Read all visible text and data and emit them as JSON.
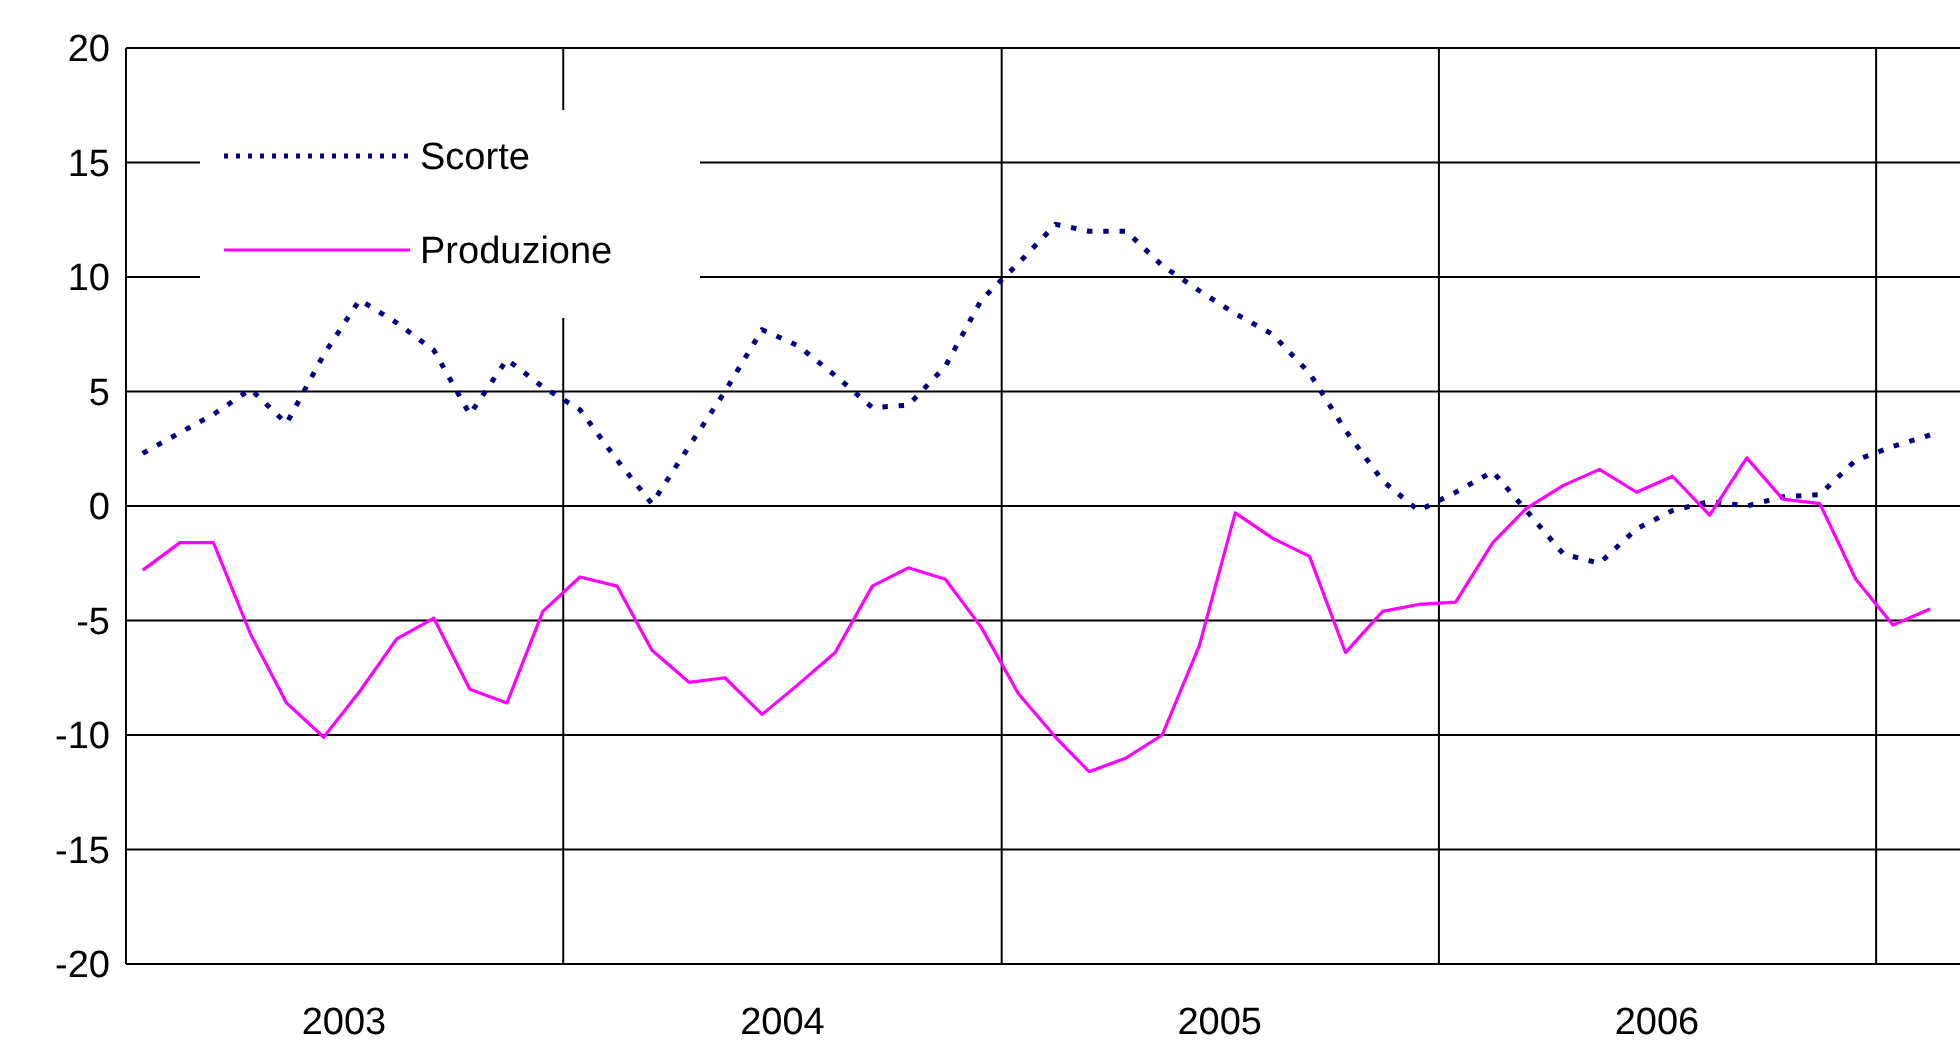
{
  "chart_data": {
    "type": "line",
    "x": [
      "2003-01-15",
      "2003-02-15",
      "2003-03-15",
      "2003-04-15",
      "2003-05-15",
      "2003-06-15",
      "2003-07-15",
      "2003-08-15",
      "2003-09-15",
      "2003-10-15",
      "2003-11-15",
      "2003-12-15",
      "2004-01-15",
      "2004-02-15",
      "2004-03-15",
      "2004-04-15",
      "2004-05-15",
      "2004-06-15",
      "2004-07-15",
      "2004-08-15",
      "2004-09-15",
      "2004-10-15",
      "2004-11-15",
      "2004-12-15",
      "2005-01-15",
      "2005-02-15",
      "2005-03-15",
      "2005-04-15",
      "2005-05-15",
      "2005-06-15",
      "2005-07-15",
      "2005-08-15",
      "2005-09-15",
      "2005-10-15",
      "2005-11-15",
      "2005-12-15",
      "2006-01-15",
      "2006-02-15",
      "2006-03-15",
      "2006-04-15",
      "2006-05-15",
      "2006-06-15",
      "2006-07-15",
      "2006-08-15",
      "2006-09-15",
      "2006-10-15",
      "2006-11-15",
      "2006-12-15",
      "2007-01-15",
      "2007-02-15"
    ],
    "series": [
      {
        "name": "Scorte",
        "color": "#000080",
        "line_style": "dotted",
        "values": [
          2.3,
          3.2,
          4.0,
          5.1,
          3.6,
          6.6,
          9.0,
          8.0,
          6.8,
          4.0,
          6.4,
          5.2,
          4.2,
          2.0,
          0.1,
          2.6,
          5.0,
          7.7,
          7.0,
          5.7,
          4.3,
          4.4,
          6.1,
          9.0,
          10.6,
          12.3,
          12.0,
          12.0,
          10.5,
          9.4,
          8.4,
          7.5,
          5.8,
          3.3,
          1.1,
          -0.2,
          0.6,
          1.5,
          -0.2,
          -2.1,
          -2.5,
          -1.0,
          -0.2,
          0.2,
          0.0,
          0.4,
          0.5,
          2.0,
          2.6,
          3.1
        ]
      },
      {
        "name": "Produzione",
        "color": "#ff00ff",
        "line_style": "solid",
        "values": [
          -2.8,
          -1.6,
          -1.6,
          -5.6,
          -8.6,
          -10.1,
          -8.1,
          -5.8,
          -4.9,
          -8.0,
          -8.6,
          -4.6,
          -3.1,
          -3.5,
          -6.3,
          -7.7,
          -7.5,
          -9.1,
          -7.8,
          -6.4,
          -3.5,
          -2.7,
          -3.2,
          -5.3,
          -8.2,
          -10.1,
          -11.6,
          -11.0,
          -10.0,
          -6.1,
          -0.3,
          -1.4,
          -2.2,
          -6.4,
          -4.6,
          -4.3,
          -4.2,
          -1.6,
          -0.1,
          0.9,
          1.6,
          0.6,
          1.3,
          -0.4,
          2.1,
          0.3,
          0.1,
          -3.2,
          -5.2,
          -4.5
        ]
      }
    ],
    "xlim": [
      "2003-01-01",
      "2007-03-12"
    ],
    "xticks": [
      {
        "value": "2003-01-01",
        "label": null
      },
      {
        "value": "2003-07-02",
        "label": "2003"
      },
      {
        "value": "2004-01-01",
        "label": null
      },
      {
        "value": "2004-07-02",
        "label": "2004"
      },
      {
        "value": "2005-01-01",
        "label": null
      },
      {
        "value": "2005-07-02",
        "label": "2005"
      },
      {
        "value": "2006-01-01",
        "label": null
      },
      {
        "value": "2006-07-02",
        "label": "2006"
      },
      {
        "value": "2007-01-01",
        "label": null
      }
    ],
    "ylim": [
      -20,
      20
    ],
    "yticks": [
      -20,
      -15,
      -10,
      -5,
      0,
      5,
      10,
      15,
      20
    ],
    "grid": true,
    "legend": "top left"
  }
}
